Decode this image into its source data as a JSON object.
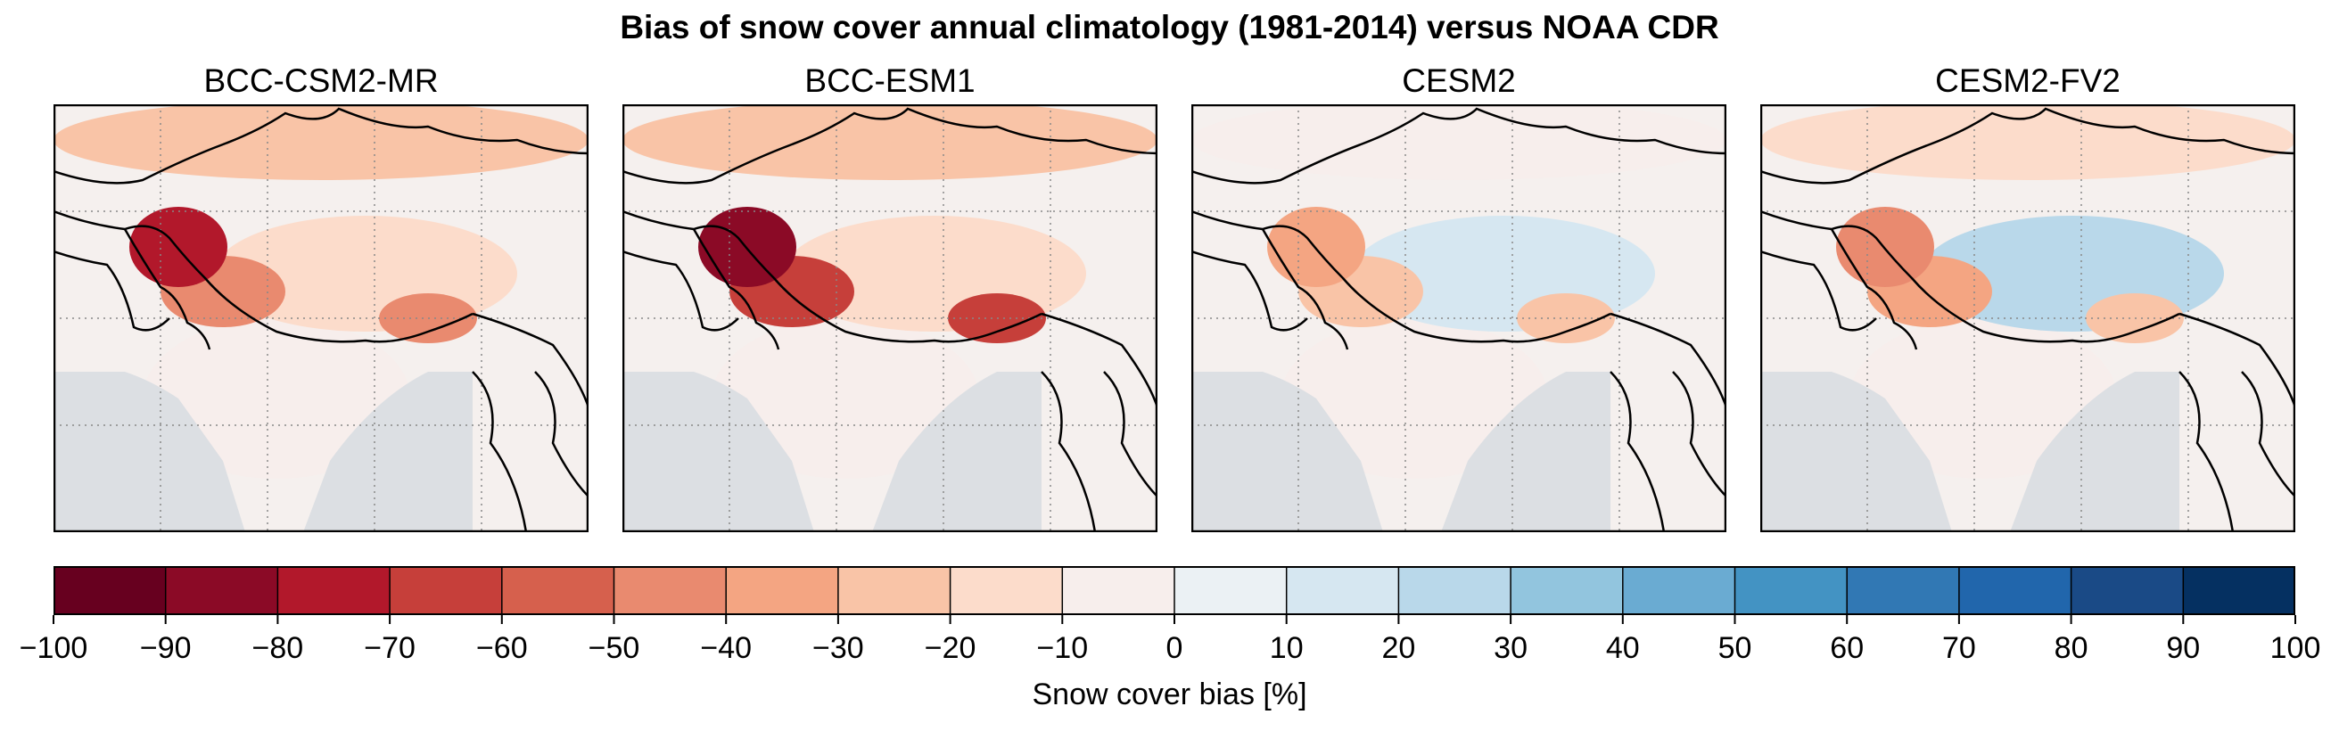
{
  "figure": {
    "title": "Bias of snow cover annual climatology (1981-2014) versus NOAA CDR"
  },
  "chart_data": {
    "type": "heatmap",
    "title": "Bias of snow cover annual climatology (1981-2014) versus NOAA CDR",
    "panels": [
      {
        "model": "BCC-CSM2-MR",
        "bias_by_region_percent": {
          "central_asia_north": -25,
          "pamir_hindukush_karakoram": -80,
          "western_himalaya": -50,
          "tibetan_plateau": -15,
          "eastern_himalaya": -45,
          "indian_subcontinent": -5
        }
      },
      {
        "model": "BCC-ESM1",
        "bias_by_region_percent": {
          "central_asia_north": -30,
          "pamir_hindukush_karakoram": -85,
          "western_himalaya": -70,
          "tibetan_plateau": -15,
          "eastern_himalaya": -70,
          "indian_subcontinent": -5
        }
      },
      {
        "model": "CESM2",
        "bias_by_region_percent": {
          "central_asia_north": -10,
          "pamir_hindukush_karakoram": -40,
          "western_himalaya": -30,
          "tibetan_plateau": 15,
          "eastern_himalaya": -25,
          "indian_subcontinent": -3
        }
      },
      {
        "model": "CESM2-FV2",
        "bias_by_region_percent": {
          "central_asia_north": -15,
          "pamir_hindukush_karakoram": -50,
          "western_himalaya": -40,
          "tibetan_plateau": 20,
          "eastern_himalaya": -30,
          "indian_subcontinent": -3
        }
      }
    ],
    "colorbar": {
      "label": "Snow cover bias [%]",
      "range": [
        -100,
        100
      ],
      "step": 10,
      "ticks": [
        "−100",
        "−90",
        "−80",
        "−70",
        "−60",
        "−50",
        "−40",
        "−30",
        "−20",
        "−10",
        "0",
        "10",
        "20",
        "30",
        "40",
        "50",
        "60",
        "70",
        "80",
        "90",
        "100"
      ],
      "colors": [
        "#67001f",
        "#8b0a26",
        "#b2182b",
        "#c63f3a",
        "#d6604d",
        "#e98a6f",
        "#f4a582",
        "#f9c4a7",
        "#fcdccb",
        "#f7eeec",
        "#ebf1f4",
        "#d6e7f1",
        "#b9d8ea",
        "#92c5de",
        "#6aabd2",
        "#4393c3",
        "#3178b4",
        "#2166ac",
        "#1a4a86",
        "#053061"
      ]
    },
    "ocean_color": "#dcdfe3",
    "colormap": "RdBu",
    "grid": "dotted lon/lat lines"
  }
}
